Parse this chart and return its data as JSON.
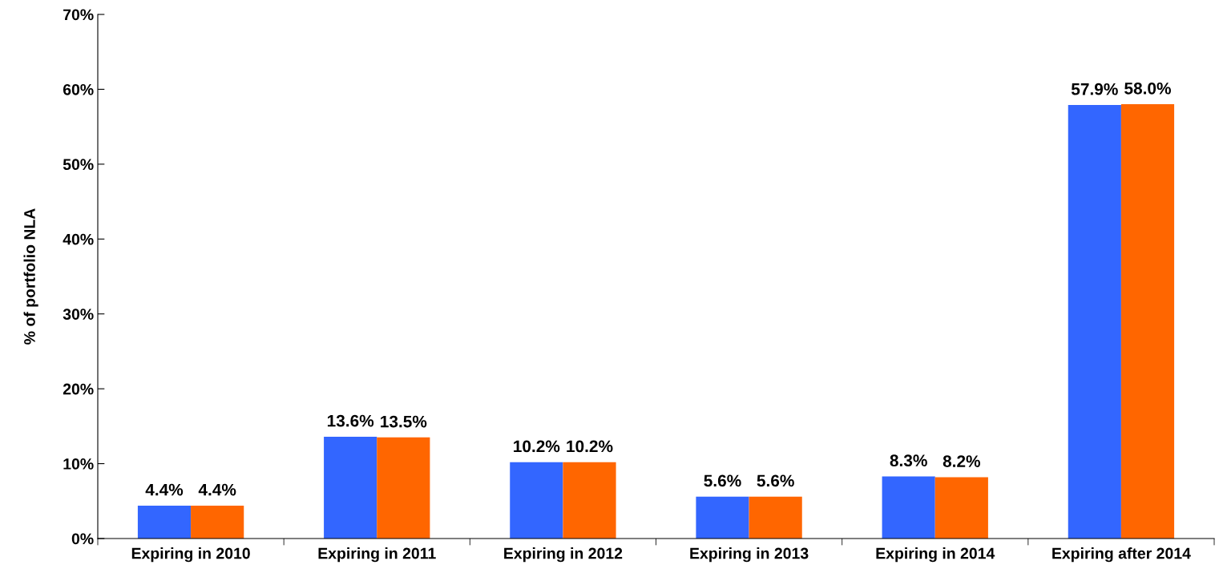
{
  "chart_data": {
    "type": "bar",
    "ylabel": "% of portfolio NLA",
    "categories": [
      "Expiring in 2010",
      "Expiring in 2011",
      "Expiring in 2012",
      "Expiring in 2013",
      "Expiring in 2014",
      "Expiring after 2014"
    ],
    "series": [
      {
        "color": "#3366ff",
        "values": [
          4.4,
          13.6,
          10.2,
          5.6,
          8.3,
          57.9
        ],
        "value_labels": [
          "4.4%",
          "13.6%",
          "10.2%",
          "5.6%",
          "8.3%",
          "57.9%"
        ]
      },
      {
        "color": "#ff6600",
        "values": [
          4.4,
          13.5,
          10.2,
          5.6,
          8.2,
          58.0
        ],
        "value_labels": [
          "4.4%",
          "13.5%",
          "10.2%",
          "5.6%",
          "8.2%",
          "58.0%"
        ]
      }
    ],
    "ylim": [
      0,
      70
    ],
    "yticks": [
      {
        "value": 0,
        "label": "0%"
      },
      {
        "value": 10,
        "label": "10%"
      },
      {
        "value": 20,
        "label": "20%"
      },
      {
        "value": 30,
        "label": "30%"
      },
      {
        "value": 40,
        "label": "40%"
      },
      {
        "value": 50,
        "label": "50%"
      },
      {
        "value": 60,
        "label": "60%"
      },
      {
        "value": 70,
        "label": "70%"
      }
    ],
    "grid": false,
    "legend": false
  }
}
